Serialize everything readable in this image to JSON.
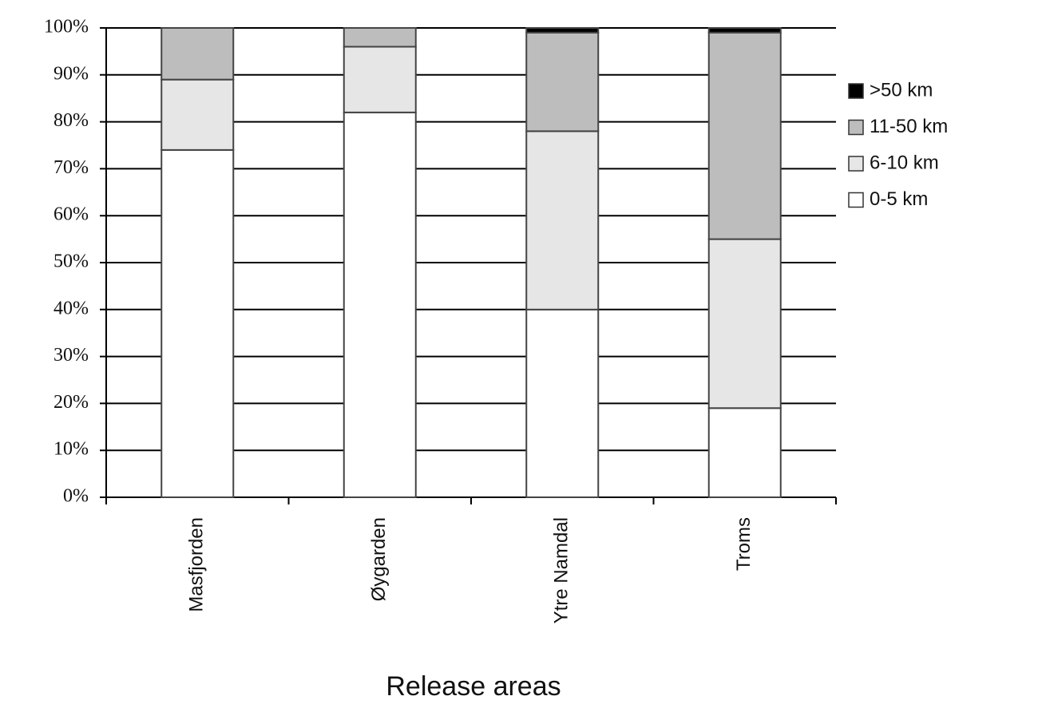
{
  "chart_data": {
    "type": "stacked_bar",
    "x_label": "Release areas",
    "categories": [
      "Masfjorden",
      "Øygarden",
      "Ytre Namdal",
      "Troms"
    ],
    "series": [
      {
        "name": "0-5 km",
        "color": "#ffffff",
        "values": [
          74,
          82,
          40,
          19
        ]
      },
      {
        "name": "6-10 km",
        "color": "#e6e6e6",
        "values": [
          15,
          14,
          38,
          36
        ]
      },
      {
        "name": "11-50 km",
        "color": "#bdbdbd",
        "values": [
          11,
          4,
          21,
          44
        ]
      },
      {
        "name": ">50 km",
        "color": "#000000",
        "values": [
          0,
          0,
          1,
          1
        ]
      }
    ],
    "ylim": [
      0,
      100
    ],
    "yticks": [
      {
        "value": 0,
        "label": "0%"
      },
      {
        "value": 10,
        "label": "10%"
      },
      {
        "value": 20,
        "label": "20%"
      },
      {
        "value": 30,
        "label": "30%"
      },
      {
        "value": 40,
        "label": "40%"
      },
      {
        "value": 50,
        "label": "50%"
      },
      {
        "value": 60,
        "label": "60%"
      },
      {
        "value": 70,
        "label": "70%"
      },
      {
        "value": 80,
        "label": "80%"
      },
      {
        "value": 90,
        "label": "90%"
      },
      {
        "value": 100,
        "label": "100%"
      }
    ],
    "grid": true,
    "legend": "right"
  }
}
